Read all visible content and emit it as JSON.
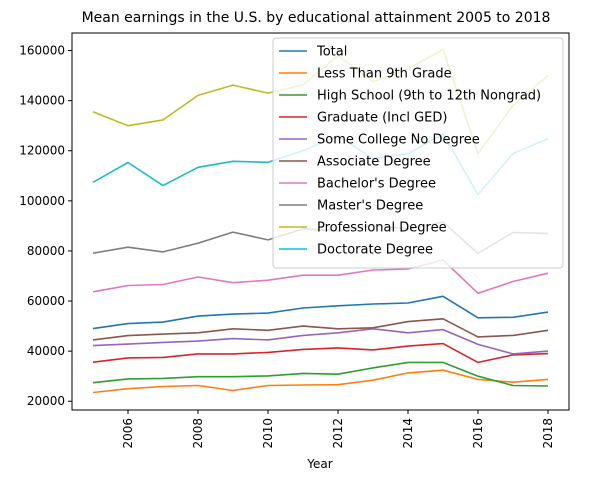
{
  "chart_data": {
    "type": "line",
    "title": "Mean earnings in the U.S. by educational attainment 2005 to 2018",
    "xlabel": "Year",
    "ylabel": "",
    "xlim": [
      2004.4,
      2018.6
    ],
    "ylim": [
      16500,
      167000
    ],
    "xticks": [
      2006,
      2008,
      2010,
      2012,
      2014,
      2016,
      2018
    ],
    "yticks": [
      20000,
      40000,
      60000,
      80000,
      100000,
      120000,
      140000,
      160000
    ],
    "grid": false,
    "legend_position": "top-right",
    "x": [
      2005,
      2006,
      2007,
      2008,
      2009,
      2010,
      2011,
      2012,
      2013,
      2014,
      2015,
      2016,
      2017,
      2018
    ],
    "series": [
      {
        "name": "Total",
        "color": "#1f77b4",
        "values": [
          49000,
          51000,
          51600,
          54000,
          54800,
          55200,
          57200,
          58100,
          58800,
          59200,
          61900,
          53300,
          53500,
          55600
        ]
      },
      {
        "name": "Less Than 9th Grade",
        "color": "#ff7f0e",
        "values": [
          23500,
          25000,
          25900,
          26300,
          24300,
          26300,
          26500,
          26600,
          28400,
          31300,
          32400,
          28700,
          27600,
          28700
        ]
      },
      {
        "name": "High School (9th to 12th Nongrad)",
        "color": "#2ca02c",
        "values": [
          27400,
          28900,
          29100,
          29800,
          29800,
          30100,
          31100,
          30800,
          33300,
          35500,
          35500,
          30000,
          26300,
          26100
        ]
      },
      {
        "name": "Graduate (Incl GED)",
        "color": "#d62728",
        "values": [
          35600,
          37300,
          37500,
          38900,
          38900,
          39500,
          40700,
          41300,
          40500,
          42000,
          43000,
          35500,
          38500,
          39000
        ]
      },
      {
        "name": "Some College No Degree",
        "color": "#9467bd",
        "values": [
          42200,
          42800,
          43500,
          44000,
          45000,
          44500,
          46300,
          47300,
          48900,
          47300,
          48600,
          42700,
          38900,
          40000
        ]
      },
      {
        "name": "Associate Degree",
        "color": "#8c564b",
        "values": [
          44500,
          46200,
          46800,
          47300,
          48900,
          48300,
          50000,
          48900,
          49300,
          51800,
          52900,
          45700,
          46300,
          48300
        ]
      },
      {
        "name": "Bachelor's Degree",
        "color": "#e377c2",
        "values": [
          63700,
          66200,
          66600,
          69600,
          67300,
          68300,
          70300,
          70300,
          72400,
          72800,
          76400,
          63100,
          67800,
          71100
        ]
      },
      {
        "name": "Master's Degree",
        "color": "#7f7f7f",
        "values": [
          79100,
          81500,
          79600,
          83100,
          87500,
          84400,
          88800,
          88000,
          90300,
          88700,
          91500,
          79000,
          87400,
          86900
        ]
      },
      {
        "name": "Professional Degree",
        "color": "#bcbd22",
        "values": [
          135600,
          130000,
          132300,
          142100,
          146200,
          143000,
          146300,
          158000,
          147600,
          152700,
          160400,
          118800,
          138100,
          150000
        ]
      },
      {
        "name": "Doctorate Degree",
        "color": "#17becf",
        "values": [
          107400,
          115300,
          106100,
          113400,
          115800,
          115400,
          120000,
          126000,
          116800,
          118800,
          126800,
          102500,
          118900,
          124800
        ]
      }
    ]
  }
}
